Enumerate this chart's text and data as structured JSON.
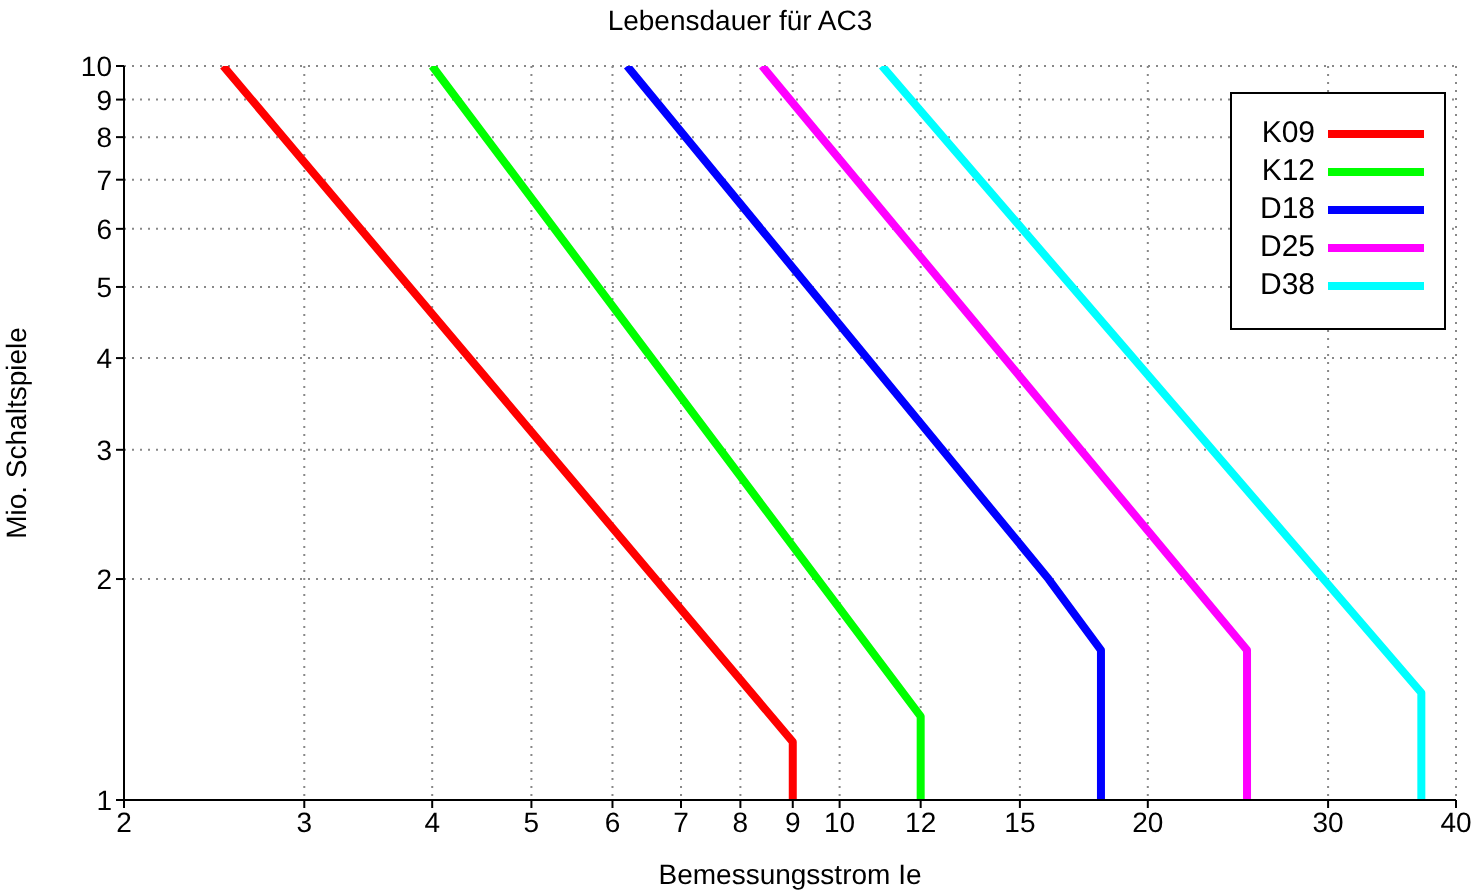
{
  "chart_data": {
    "type": "line",
    "title": "Lebensdauer für AC3",
    "xlabel": "Bemessungsstrom Ie",
    "ylabel": "Mio. Schaltspiele",
    "log": "xy",
    "grid": true,
    "legend": "top right",
    "line_style": "solid",
    "marker": "none",
    "xlim": [
      2,
      40
    ],
    "xticks": [
      2,
      3,
      4,
      5,
      6,
      7,
      8,
      9,
      10,
      12,
      15,
      20,
      30,
      40
    ],
    "ylim": [
      1,
      10
    ],
    "yticks": [
      1,
      2,
      3,
      4,
      5,
      6,
      7,
      8,
      9,
      10
    ],
    "series": [
      {
        "name": "K09",
        "color": "#ff0000",
        "x": [
          2.5,
          9,
          9
        ],
        "values": [
          10,
          1.2,
          1
        ]
      },
      {
        "name": "K12",
        "color": "#00ff00",
        "x": [
          4,
          12,
          12
        ],
        "values": [
          10,
          1.3,
          1
        ]
      },
      {
        "name": "D18",
        "color": "#0000ff",
        "x": [
          6.2,
          16,
          18,
          18
        ],
        "values": [
          10,
          2,
          1.6,
          1
        ]
      },
      {
        "name": "D25",
        "color": "#ff00ff",
        "x": [
          8.4,
          25,
          25
        ],
        "values": [
          10,
          1.6,
          1
        ]
      },
      {
        "name": "D38",
        "color": "#00ffff",
        "x": [
          11,
          37,
          37
        ],
        "values": [
          10,
          1.4,
          1
        ]
      }
    ]
  }
}
